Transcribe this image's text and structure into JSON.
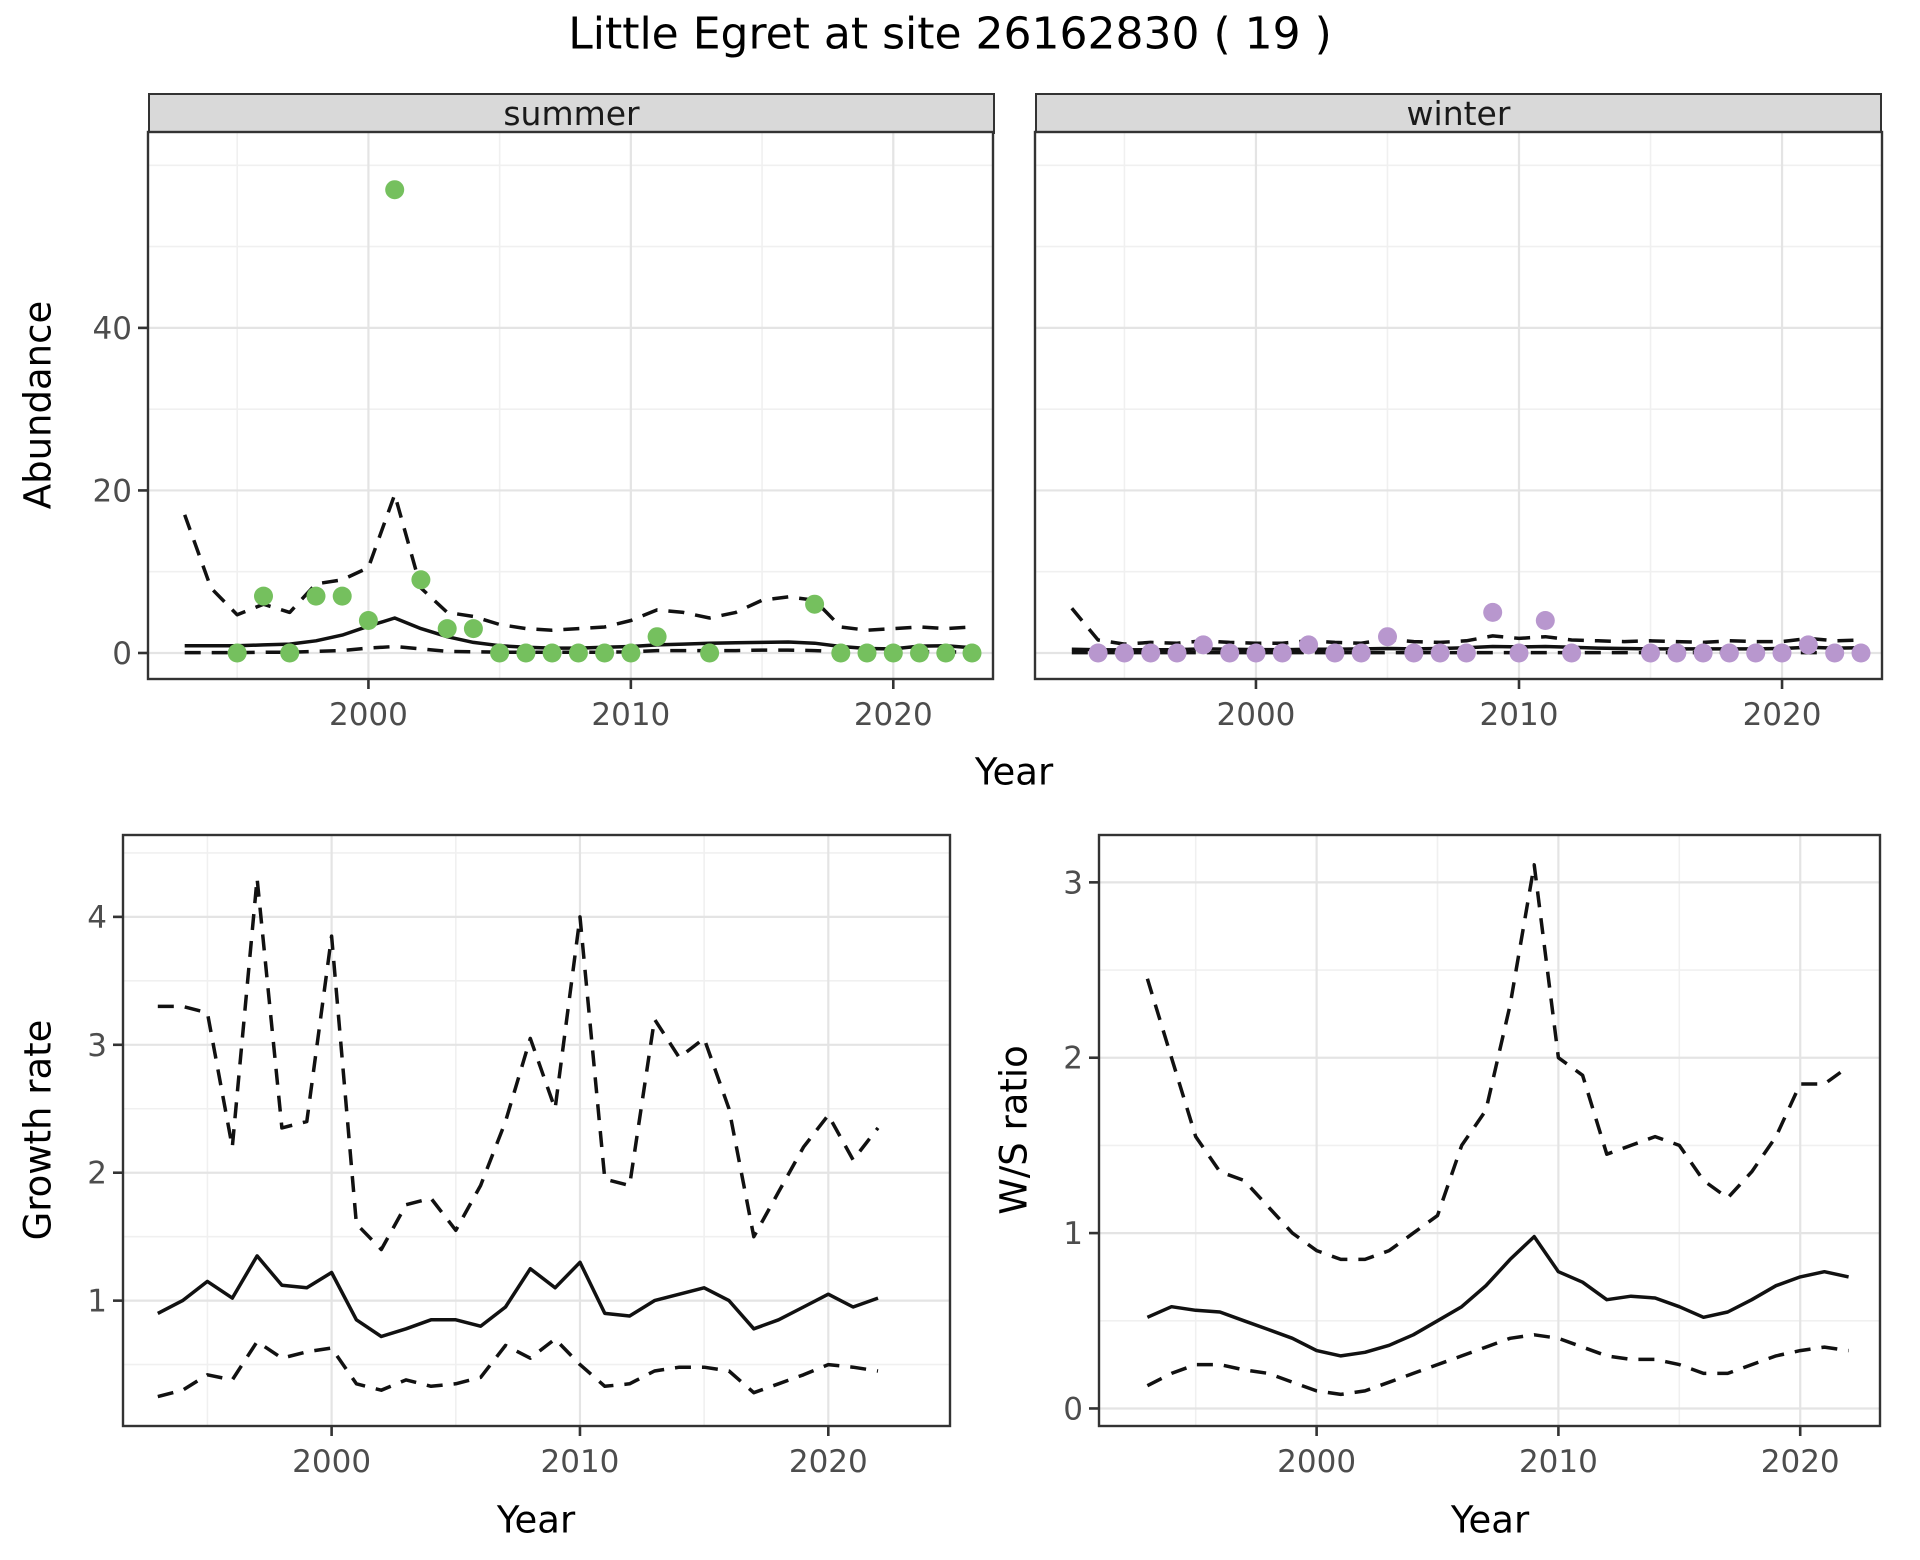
{
  "title": "Little Egret at site 26162830 ( 19 )",
  "top_row": {
    "xlabel": "Year"
  },
  "colors": {
    "summer_point": "#75c05e",
    "winter_point": "#b897ce",
    "line": "#111111",
    "strip_bg": "#d9d9d9",
    "grid_major": "#e4e4e4",
    "grid_minor": "#f0f0f0",
    "axis_text": "#4d4d4d",
    "panel_border": "#333333"
  },
  "chart_data": [
    {
      "type": "scatter",
      "facet": "summer",
      "ylabel": "Abundance",
      "xlabel": "Year",
      "xlim": [
        1991.6,
        2023.8
      ],
      "ylim": [
        -3.2,
        64.1
      ],
      "xticks": [
        2000,
        2010,
        2020
      ],
      "xticks_minor": [
        1995,
        2005,
        2015
      ],
      "yticks": [
        0,
        20,
        40
      ],
      "yticks_minor": [
        10,
        30,
        50,
        60
      ],
      "grid": true,
      "legend": "none",
      "points": {
        "x": [
          1995,
          1996,
          1997,
          1998,
          1999,
          2000,
          2001,
          2002,
          2003,
          2004,
          2005,
          2006,
          2007,
          2008,
          2009,
          2010,
          2011,
          2013,
          2017,
          2018,
          2019,
          2020,
          2021,
          2022,
          2023
        ],
        "y": [
          0,
          7,
          0,
          7,
          7,
          4,
          57,
          9,
          3,
          3,
          0,
          0,
          0,
          0,
          0,
          0,
          2,
          0,
          6,
          0,
          0,
          0,
          0,
          0,
          0
        ]
      },
      "x": [
        1993,
        1994,
        1995,
        1996,
        1997,
        1998,
        1999,
        2000,
        2001,
        2002,
        2003,
        2004,
        2005,
        2006,
        2007,
        2008,
        2009,
        2010,
        2011,
        2012,
        2013,
        2014,
        2015,
        2016,
        2017,
        2018,
        2019,
        2020,
        2021,
        2022,
        2023
      ],
      "fit": [
        0.9,
        0.9,
        0.9,
        1.0,
        1.1,
        1.5,
        2.2,
        3.3,
        4.3,
        3.0,
        2.0,
        1.3,
        0.9,
        0.7,
        0.6,
        0.6,
        0.7,
        0.8,
        1.0,
        1.1,
        1.2,
        1.25,
        1.3,
        1.35,
        1.2,
        0.8,
        0.55,
        0.5,
        0.85,
        0.9,
        0.65
      ],
      "upper": [
        17,
        8,
        4.7,
        6,
        5,
        8.5,
        9,
        10.5,
        19.5,
        8,
        5,
        4.5,
        3.5,
        3,
        2.8,
        3,
        3.2,
        4,
        5.3,
        5,
        4.3,
        5,
        6.5,
        6.9,
        6.5,
        3.2,
        2.8,
        3.0,
        3.2,
        3.0,
        3.2
      ],
      "lower": [
        0.05,
        0.05,
        0.05,
        0.1,
        0.1,
        0.2,
        0.3,
        0.6,
        0.8,
        0.5,
        0.2,
        0.15,
        0.1,
        0.1,
        0.1,
        0.1,
        0.1,
        0.15,
        0.3,
        0.3,
        0.3,
        0.3,
        0.35,
        0.35,
        0.3,
        0.15,
        0.1,
        0.1,
        0.15,
        0.15,
        0.1
      ]
    },
    {
      "type": "scatter",
      "facet": "winter",
      "ylabel": "Abundance",
      "xlabel": "Year",
      "xlim": [
        1991.6,
        2023.8
      ],
      "ylim": [
        -3.2,
        64.1
      ],
      "xticks": [
        2000,
        2010,
        2020
      ],
      "xticks_minor": [
        1995,
        2005,
        2015
      ],
      "yticks": [
        0,
        20,
        40
      ],
      "yticks_minor": [
        10,
        30,
        50,
        60
      ],
      "grid": true,
      "legend": "none",
      "show_ytick_labels": false,
      "points": {
        "x": [
          1994,
          1995,
          1996,
          1997,
          1998,
          1999,
          2000,
          2001,
          2002,
          2003,
          2004,
          2005,
          2006,
          2007,
          2008,
          2009,
          2010,
          2011,
          2012,
          2015,
          2016,
          2017,
          2018,
          2019,
          2020,
          2021,
          2022,
          2023
        ],
        "y": [
          0,
          0,
          0,
          0,
          1,
          0,
          0,
          0,
          1,
          0,
          0,
          2,
          0,
          0,
          0,
          5,
          0,
          4,
          0,
          0,
          0,
          0,
          0,
          0,
          0,
          1,
          0,
          0
        ]
      },
      "x": [
        1993,
        1994,
        1995,
        1996,
        1997,
        1998,
        1999,
        2000,
        2001,
        2002,
        2003,
        2004,
        2005,
        2006,
        2007,
        2008,
        2009,
        2010,
        2011,
        2012,
        2013,
        2014,
        2015,
        2016,
        2017,
        2018,
        2019,
        2020,
        2021,
        2022,
        2023
      ],
      "fit": [
        0.45,
        0.4,
        0.38,
        0.4,
        0.42,
        0.5,
        0.45,
        0.42,
        0.4,
        0.45,
        0.45,
        0.5,
        0.55,
        0.5,
        0.55,
        0.65,
        0.8,
        0.75,
        0.8,
        0.7,
        0.6,
        0.55,
        0.5,
        0.5,
        0.5,
        0.5,
        0.5,
        0.55,
        0.7,
        0.6,
        0.65
      ],
      "upper": [
        5.5,
        1.6,
        1.1,
        1.3,
        1.2,
        1.5,
        1.3,
        1.2,
        1.2,
        1.5,
        1.3,
        1.2,
        1.7,
        1.4,
        1.3,
        1.5,
        2.1,
        1.8,
        2.0,
        1.6,
        1.5,
        1.4,
        1.5,
        1.4,
        1.3,
        1.5,
        1.4,
        1.4,
        1.8,
        1.5,
        1.6
      ],
      "lower": [
        0.05,
        0.05,
        0.05,
        0.05,
        0.05,
        0.05,
        0.05,
        0.05,
        0.05,
        0.05,
        0.05,
        0.05,
        0.05,
        0.05,
        0.05,
        0.05,
        0.05,
        0.05,
        0.05,
        0.05,
        0.05,
        0.05,
        0.05,
        0.05,
        0.05,
        0.05,
        0.05,
        0.05,
        0.05,
        0.05,
        0.05
      ]
    },
    {
      "type": "line",
      "ylabel": "Growth rate",
      "xlabel": "Year",
      "xlim": [
        1991.6,
        2024.9
      ],
      "ylim": [
        0.02,
        4.64
      ],
      "xticks": [
        2000,
        2010,
        2020
      ],
      "xticks_minor": [
        1995,
        2005,
        2015
      ],
      "yticks": [
        1,
        2,
        3,
        4
      ],
      "yticks_minor": [
        0.5,
        1.5,
        2.5,
        3.5,
        4.5
      ],
      "grid": true,
      "legend": "none",
      "x": [
        1993,
        1994,
        1995,
        1996,
        1997,
        1998,
        1999,
        2000,
        2001,
        2002,
        2003,
        2004,
        2005,
        2006,
        2007,
        2008,
        2009,
        2010,
        2011,
        2012,
        2013,
        2014,
        2015,
        2016,
        2017,
        2018,
        2019,
        2020,
        2021,
        2022
      ],
      "fit": [
        0.9,
        1.0,
        1.15,
        1.02,
        1.35,
        1.12,
        1.1,
        1.22,
        0.85,
        0.72,
        0.78,
        0.85,
        0.85,
        0.8,
        0.95,
        1.25,
        1.1,
        1.3,
        0.9,
        0.88,
        1.0,
        1.05,
        1.1,
        1.0,
        0.78,
        0.85,
        0.95,
        1.05,
        0.95,
        1.02
      ],
      "upper": [
        3.3,
        3.3,
        3.25,
        2.2,
        4.3,
        2.35,
        2.4,
        3.85,
        1.6,
        1.4,
        1.75,
        1.8,
        1.55,
        1.9,
        2.4,
        3.05,
        2.5,
        4.0,
        1.95,
        1.9,
        3.2,
        2.9,
        3.05,
        2.5,
        1.5,
        1.85,
        2.2,
        2.45,
        2.1,
        2.35
      ],
      "lower": [
        0.25,
        0.3,
        0.42,
        0.38,
        0.68,
        0.55,
        0.6,
        0.63,
        0.35,
        0.3,
        0.38,
        0.33,
        0.35,
        0.4,
        0.65,
        0.55,
        0.7,
        0.5,
        0.33,
        0.35,
        0.45,
        0.48,
        0.48,
        0.45,
        0.28,
        0.35,
        0.42,
        0.5,
        0.48,
        0.45
      ]
    },
    {
      "type": "line",
      "ylabel": "W/S ratio",
      "xlabel": "Year",
      "xlim": [
        1991.0,
        2023.3
      ],
      "ylim": [
        -0.1,
        3.27
      ],
      "xticks": [
        2000,
        2010,
        2020
      ],
      "xticks_minor": [
        1995,
        2005,
        2015
      ],
      "yticks": [
        0,
        1,
        2,
        3
      ],
      "yticks_minor": [
        0.5,
        1.5,
        2.5
      ],
      "grid": true,
      "legend": "none",
      "x": [
        1993,
        1994,
        1995,
        1996,
        1997,
        1998,
        1999,
        2000,
        2001,
        2002,
        2003,
        2004,
        2005,
        2006,
        2007,
        2008,
        2009,
        2010,
        2011,
        2012,
        2013,
        2014,
        2015,
        2016,
        2017,
        2018,
        2019,
        2020,
        2021,
        2022
      ],
      "fit": [
        0.52,
        0.58,
        0.56,
        0.55,
        0.5,
        0.45,
        0.4,
        0.33,
        0.3,
        0.32,
        0.36,
        0.42,
        0.5,
        0.58,
        0.7,
        0.85,
        0.98,
        0.78,
        0.72,
        0.62,
        0.64,
        0.63,
        0.58,
        0.52,
        0.55,
        0.62,
        0.7,
        0.75,
        0.78,
        0.75
      ],
      "upper": [
        2.45,
        2.0,
        1.55,
        1.35,
        1.3,
        1.15,
        1.0,
        0.9,
        0.85,
        0.85,
        0.9,
        1.0,
        1.1,
        1.5,
        1.7,
        2.3,
        3.1,
        2.0,
        1.9,
        1.45,
        1.5,
        1.55,
        1.5,
        1.3,
        1.2,
        1.35,
        1.55,
        1.85,
        1.85,
        1.95
      ],
      "lower": [
        0.13,
        0.2,
        0.25,
        0.25,
        0.22,
        0.2,
        0.15,
        0.1,
        0.08,
        0.1,
        0.15,
        0.2,
        0.25,
        0.3,
        0.35,
        0.4,
        0.42,
        0.4,
        0.35,
        0.3,
        0.28,
        0.28,
        0.25,
        0.2,
        0.2,
        0.25,
        0.3,
        0.33,
        0.35,
        0.33
      ]
    }
  ]
}
